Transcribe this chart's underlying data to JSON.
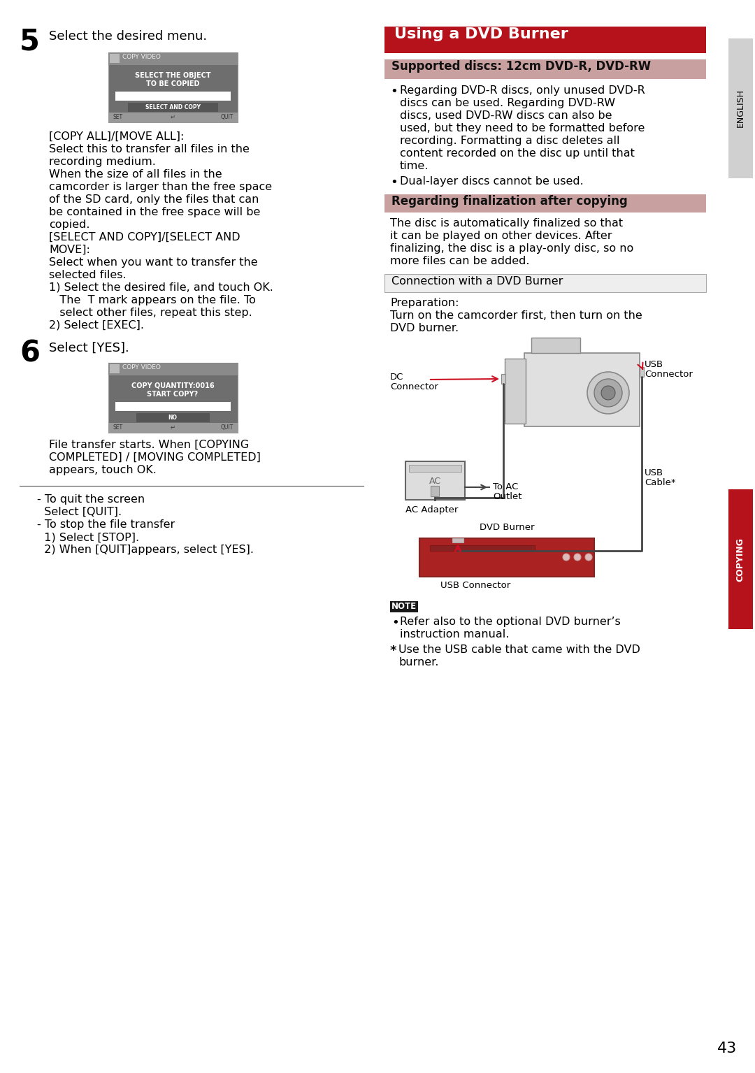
{
  "page_bg": "#ffffff",
  "page_num": "43",
  "right_header_bg": "#b5121b",
  "right_header_text": "Using a DVD Burner",
  "right_header_text_color": "#ffffff",
  "sub_header1_bg": "#c8888888",
  "sub_header1_text": "Supported discs: 12cm DVD-R, DVD-RW",
  "sub_header1_text_color": "#111111",
  "bullet1_lines": [
    "Regarding DVD-R discs, only unused DVD-R",
    "discs can be used. Regarding DVD-RW",
    "discs, used DVD-RW discs can also be",
    "used, but they need to be formatted before",
    "recording. Formatting a disc deletes all",
    "content recorded on the disc up until that",
    "time."
  ],
  "bullet2_text": "Dual-layer discs cannot be used.",
  "sub_header2_bg": "#c8888888",
  "sub_header2_text": "Regarding finalization after copying",
  "sub_header2_text_color": "#111111",
  "finalization_lines": [
    "The disc is automatically finalized so that",
    "it can be played on other devices. After",
    "finalizing, the disc is a play-only disc, so no",
    "more files can be added."
  ],
  "connection_header_bg": "#eeeeee",
  "connection_header_border": "#aaaaaa",
  "connection_header_text": "Connection with a DVD Burner",
  "preparation_lines": [
    "Preparation:",
    "Turn on the camcorder first, then turn on the",
    "DVD burner."
  ],
  "note_bg": "#1a1a1a",
  "note_text_color": "#ffffff",
  "note_label": "NOTE",
  "note_bullet1_lines": [
    "Refer also to the optional DVD burner’s",
    "instruction manual."
  ],
  "note_star_lines": [
    "Use the USB cable that came with the DVD",
    "burner."
  ],
  "side_tab_right_bg": "#d0d0d0",
  "side_tab_right_text": "ENGLISH",
  "side_tab_bottom_bg": "#b5121b",
  "side_tab_bottom_text": "COPYING",
  "screen_bg": "#6e6e6e",
  "screen_bar_bg": "#8a8a8a",
  "screen_btn_bg": "#555555",
  "screen_bottom_bg": "#999999",
  "screen1_title": "COPY VIDEO",
  "screen1_line1": "SELECT THE OBJECT",
  "screen1_line2": "TO BE COPIED",
  "screen1_btn": "SELECT AND COPY",
  "screen2_title": "COPY VIDEO",
  "screen2_line1": "COPY QUANTITY:0016",
  "screen2_line2": "START COPY?",
  "screen2_btn": "NO",
  "copy_all_lines": [
    "[COPY ALL]/[MOVE ALL]:",
    "Select this to transfer all files in the",
    "recording medium.",
    "When the size of all files in the",
    "camcorder is larger than the free space",
    "of the SD card, only the files that can",
    "be contained in the free space will be",
    "copied.",
    "[SELECT AND COPY]/[SELECT AND",
    "MOVE]:",
    "Select when you want to transfer the",
    "selected files.",
    "1) Select the desired file, and touch OK.",
    "   The  T mark appears on the file. To",
    "   select other files, repeat this step.",
    "2) Select [EXEC]."
  ],
  "file_transfer_lines": [
    "File transfer starts. When [COPYING",
    "COMPLETED] / [MOVING COMPLETED]",
    "appears, touch OK."
  ],
  "dash_lines": [
    "- To quit the screen",
    "  Select [QUIT].",
    "- To stop the file transfer",
    "  1) Select [STOP].",
    "  2) When [QUIT]appears, select [YES]."
  ],
  "label_dc": "DC",
  "label_connector": "Connector",
  "label_usb_r": "USB",
  "label_connector_r": "Connector",
  "label_to_ac": "To AC",
  "label_outlet": "Outlet",
  "label_ac_adapter": "AC Adapter",
  "label_usb_cable": "USB",
  "label_cable_star": "Cable*",
  "label_dvd_burner": "DVD Burner",
  "label_usb_conn2": "USB Connector",
  "arrow_color": "#cc1122",
  "line_color": "#444444",
  "cam_body_color": "#e0e0e0",
  "cam_dark": "#888888",
  "dvd_color": "#aa2222",
  "dvd_dark": "#882222"
}
